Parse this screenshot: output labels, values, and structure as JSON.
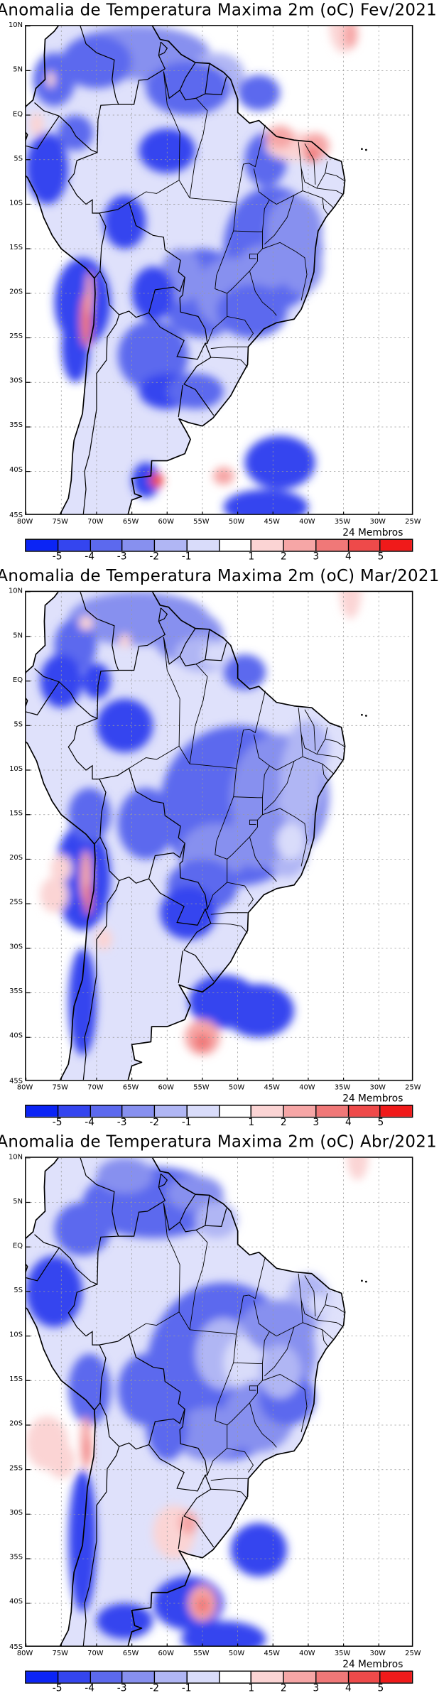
{
  "panels": [
    {
      "title": "Anomalia de Temperatura Maxima 2m (oC) Fev/2021",
      "members": "24 Membros"
    },
    {
      "title": "Anomalia de Temperatura Maxima 2m (oC) Mar/2021",
      "members": "24 Membros"
    },
    {
      "title": "Anomalia de Temperatura Maxima 2m (oC) Abr/2021",
      "members": "24 Membros"
    }
  ],
  "lat_labels": [
    "10N",
    "5N",
    "EQ",
    "5S",
    "10S",
    "15S",
    "20S",
    "25S",
    "30S",
    "35S",
    "40S",
    "45S"
  ],
  "lon_labels": [
    "80W",
    "75W",
    "70W",
    "65W",
    "60W",
    "55W",
    "50W",
    "45W",
    "40W",
    "35W",
    "30W",
    "25W"
  ],
  "legend": {
    "labels": [
      "-5",
      "-4",
      "-3",
      "-2",
      "-1",
      "1",
      "2",
      "3",
      "4",
      "5"
    ],
    "colors": [
      "#0b24f5",
      "#3445ef",
      "#5c69ee",
      "#8790ef",
      "#b0b6f4",
      "#d9dcfa",
      "#ffffff",
      "#fbd4d4",
      "#f6a6a6",
      "#f07878",
      "#ee4a4a",
      "#f01a1a"
    ]
  }
}
